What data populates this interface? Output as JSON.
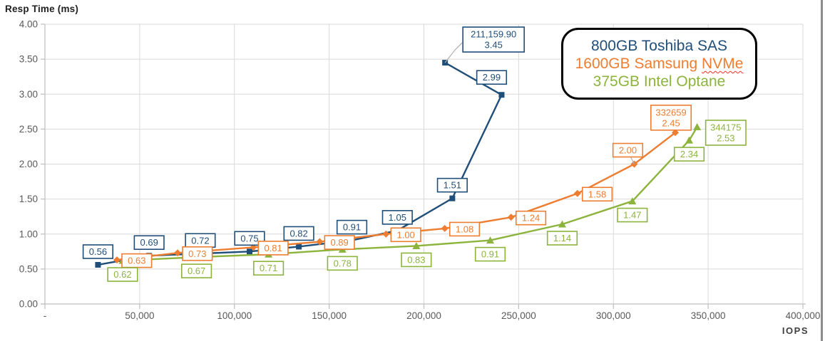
{
  "chart_data": {
    "type": "line",
    "ylabel": "Resp Time (ms)",
    "xlabel": "IOPS",
    "xlim": [
      0,
      400000
    ],
    "ylim": [
      0,
      4
    ],
    "grid": true,
    "grid_color": "#d9d9d9",
    "axis_color": "#bfbfbf",
    "tick_text_color": "#595959",
    "leader_color": "#b0b0b0",
    "x_ticks": [
      {
        "v": 0,
        "label": "-"
      },
      {
        "v": 50000,
        "label": "50,000"
      },
      {
        "v": 100000,
        "label": "100,000"
      },
      {
        "v": 150000,
        "label": "150,000"
      },
      {
        "v": 200000,
        "label": "200,000"
      },
      {
        "v": 250000,
        "label": "250,000"
      },
      {
        "v": 300000,
        "label": "300,000"
      },
      {
        "v": 350000,
        "label": "350,000"
      },
      {
        "v": 400000,
        "label": "400,000"
      }
    ],
    "y_ticks": [
      {
        "v": 0.0,
        "label": "0.00"
      },
      {
        "v": 0.5,
        "label": "0.50"
      },
      {
        "v": 1.0,
        "label": "1.00"
      },
      {
        "v": 1.5,
        "label": "1.50"
      },
      {
        "v": 2.0,
        "label": "2.00"
      },
      {
        "v": 2.5,
        "label": "2.50"
      },
      {
        "v": 3.0,
        "label": "3.00"
      },
      {
        "v": 3.5,
        "label": "3.50"
      },
      {
        "v": 4.0,
        "label": "4.00"
      }
    ],
    "legend": {
      "position": "top-right",
      "border_color": "#000000",
      "items": [
        {
          "label": "800GB Toshiba SAS",
          "color": "#1f4e79"
        },
        {
          "label": "1600GB Samsung NVMe",
          "color": "#ed7d31",
          "underline_word": "NVMe",
          "underline_color": "#ff2d21"
        },
        {
          "label": "375GB Intel Optane",
          "color": "#8cb43c"
        }
      ]
    },
    "series": [
      {
        "name": "800GB Toshiba SAS",
        "color": "#1f4e79",
        "marker": "square",
        "points": [
          {
            "iops": 28000,
            "ms": 0.56,
            "label": [
              "0.56"
            ],
            "label_pos": "above"
          },
          {
            "iops": 55000,
            "ms": 0.69,
            "label": [
              "0.69"
            ],
            "label_pos": "above"
          },
          {
            "iops": 82000,
            "ms": 0.72,
            "label": [
              "0.72"
            ],
            "label_pos": "above"
          },
          {
            "iops": 108000,
            "ms": 0.75,
            "label": [
              "0.75"
            ],
            "label_pos": "above"
          },
          {
            "iops": 134000,
            "ms": 0.82,
            "label": [
              "0.82"
            ],
            "label_pos": "above"
          },
          {
            "iops": 162000,
            "ms": 0.91,
            "label": [
              "0.91"
            ],
            "label_pos": "above"
          },
          {
            "iops": 186000,
            "ms": 1.05,
            "label": [
              "1.05"
            ],
            "label_pos": "above"
          },
          {
            "iops": 215000,
            "ms": 1.51,
            "label": [
              "1.51"
            ],
            "label_pos": "above"
          },
          {
            "iops": 241000,
            "ms": 2.99,
            "label": [
              "2.99"
            ],
            "label_pos": "above-left"
          },
          {
            "iops": 211159.9,
            "ms": 3.45,
            "label": [
              "211,159.90",
              "3.45"
            ],
            "label_pos": "callout"
          }
        ]
      },
      {
        "name": "1600GB Samsung NVMe",
        "color": "#ed7d31",
        "marker": "diamond",
        "points": [
          {
            "iops": 38000,
            "ms": 0.63,
            "label": [
              "0.63"
            ],
            "label_pos": "right"
          },
          {
            "iops": 70000,
            "ms": 0.73,
            "label": [
              "0.73"
            ],
            "label_pos": "right"
          },
          {
            "iops": 110000,
            "ms": 0.81,
            "label": [
              "0.81"
            ],
            "label_pos": "right"
          },
          {
            "iops": 145000,
            "ms": 0.89,
            "label": [
              "0.89"
            ],
            "label_pos": "right"
          },
          {
            "iops": 180000,
            "ms": 1.0,
            "label": [
              "1.00"
            ],
            "label_pos": "right"
          },
          {
            "iops": 211000,
            "ms": 1.08,
            "label": [
              "1.08"
            ],
            "label_pos": "right"
          },
          {
            "iops": 246000,
            "ms": 1.24,
            "label": [
              "1.24"
            ],
            "label_pos": "right"
          },
          {
            "iops": 281000,
            "ms": 1.58,
            "label": [
              "1.58"
            ],
            "label_pos": "right"
          },
          {
            "iops": 311000,
            "ms": 2.0,
            "label": [
              "2.00"
            ],
            "label_pos": "above-leader"
          },
          {
            "iops": 332659,
            "ms": 2.45,
            "label": [
              "332659",
              "2.45"
            ],
            "label_pos": "above-final"
          }
        ]
      },
      {
        "name": "375GB Intel Optane",
        "color": "#8cb43c",
        "marker": "triangle",
        "points": [
          {
            "iops": 41000,
            "ms": 0.62,
            "label": [
              "0.62"
            ],
            "label_pos": "below"
          },
          {
            "iops": 80000,
            "ms": 0.67,
            "label": [
              "0.67"
            ],
            "label_pos": "below"
          },
          {
            "iops": 118000,
            "ms": 0.71,
            "label": [
              "0.71"
            ],
            "label_pos": "below"
          },
          {
            "iops": 157000,
            "ms": 0.78,
            "label": [
              "0.78"
            ],
            "label_pos": "below"
          },
          {
            "iops": 196000,
            "ms": 0.83,
            "label": [
              "0.83"
            ],
            "label_pos": "below"
          },
          {
            "iops": 235000,
            "ms": 0.91,
            "label": [
              "0.91"
            ],
            "label_pos": "below"
          },
          {
            "iops": 273000,
            "ms": 1.14,
            "label": [
              "1.14"
            ],
            "label_pos": "below"
          },
          {
            "iops": 310000,
            "ms": 1.47,
            "label": [
              "1.47"
            ],
            "label_pos": "below"
          },
          {
            "iops": 340000,
            "ms": 2.34,
            "label": [
              "2.34"
            ],
            "label_pos": "below"
          },
          {
            "iops": 344175,
            "ms": 2.53,
            "label": [
              "344175",
              "2.53"
            ],
            "label_pos": "right-side"
          }
        ]
      }
    ]
  }
}
